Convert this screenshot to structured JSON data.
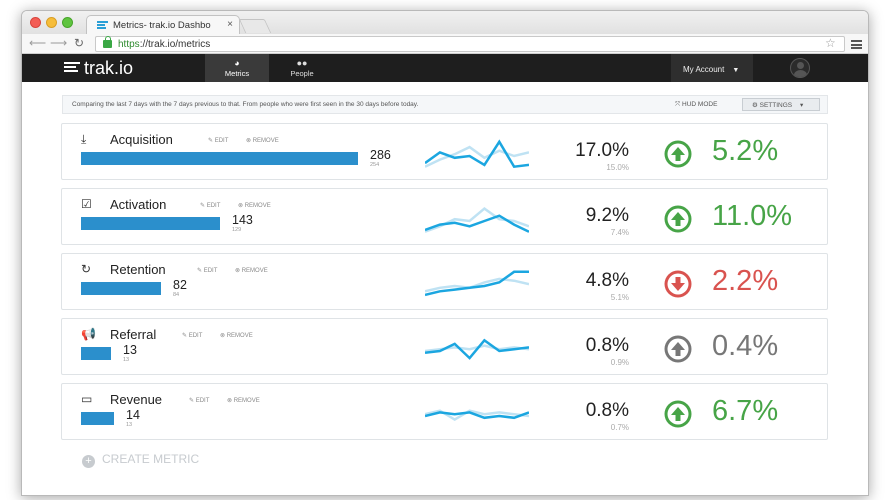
{
  "browser": {
    "tab_title": "Metrics- trak.io Dashbo",
    "tab_close": "×",
    "url_scheme": "https",
    "url_rest": "://trak.io/metrics"
  },
  "header": {
    "logo": "trak.io",
    "nav": [
      {
        "label": "Metrics",
        "icon": "dashboard-icon"
      },
      {
        "label": "People",
        "icon": "people-icon"
      }
    ],
    "account_label": "My Account"
  },
  "info": {
    "text": "Comparing the last 7 days with the 7 days previous to that. From people who were first seen in the 30 days before today.",
    "hud_mode": "HUD MODE",
    "settings": "SETTINGS"
  },
  "labels": {
    "edit": "EDIT",
    "remove": "REMOVE",
    "create_metric": "CREATE METRIC"
  },
  "colors": {
    "bar": "#2b8fcc",
    "spark_current": "#1ba6e0",
    "spark_previous": "#bfe2f3",
    "up": "#47a447",
    "down": "#d9534f",
    "neutral": "#777777"
  },
  "metrics": [
    {
      "name": "Acquisition",
      "icon": "download-icon",
      "value": "286",
      "prev_value": "254",
      "bar_fraction": 1.0,
      "rate": "17.0%",
      "prev_rate": "15.0%",
      "change": "5.2%",
      "trend": "up",
      "spark_current": [
        5,
        11,
        8,
        9,
        4,
        17,
        3,
        4
      ],
      "spark_previous": [
        3,
        7,
        10,
        14,
        8,
        12,
        9,
        11
      ]
    },
    {
      "name": "Activation",
      "icon": "checkbox-icon",
      "value": "143",
      "prev_value": "129",
      "bar_fraction": 0.5,
      "rate": "9.2%",
      "prev_rate": "7.4%",
      "change": "11.0%",
      "trend": "up",
      "spark_current": [
        4,
        7,
        8,
        6,
        9,
        12,
        7,
        3
      ],
      "spark_previous": [
        3,
        6,
        10,
        9,
        16,
        10,
        9,
        6
      ]
    },
    {
      "name": "Retention",
      "icon": "refresh-icon",
      "value": "82",
      "prev_value": "84",
      "bar_fraction": 0.29,
      "rate": "4.8%",
      "prev_rate": "5.1%",
      "change": "2.2%",
      "trend": "down",
      "spark_current": [
        4,
        6,
        7,
        8,
        9,
        11,
        17,
        17
      ],
      "spark_previous": [
        6,
        8,
        9,
        8,
        11,
        13,
        12,
        10
      ]
    },
    {
      "name": "Referral",
      "icon": "megaphone-icon",
      "value": "13",
      "prev_value": "13",
      "bar_fraction": 0.11,
      "rate": "0.8%",
      "prev_rate": "0.9%",
      "change": "0.4%",
      "trend": "neutral",
      "spark_current": [
        8,
        9,
        13,
        5,
        15,
        9,
        10,
        11
      ],
      "spark_previous": [
        9,
        10,
        11,
        10,
        12,
        10,
        11,
        10
      ]
    },
    {
      "name": "Revenue",
      "icon": "credit-card-icon",
      "value": "14",
      "prev_value": "13",
      "bar_fraction": 0.12,
      "rate": "0.8%",
      "prev_rate": "0.7%",
      "change": "6.7%",
      "trend": "up",
      "spark_current": [
        9,
        11,
        10,
        11,
        8,
        9,
        8,
        11
      ],
      "spark_previous": [
        10,
        12,
        7,
        12,
        10,
        11,
        10,
        9
      ]
    }
  ]
}
